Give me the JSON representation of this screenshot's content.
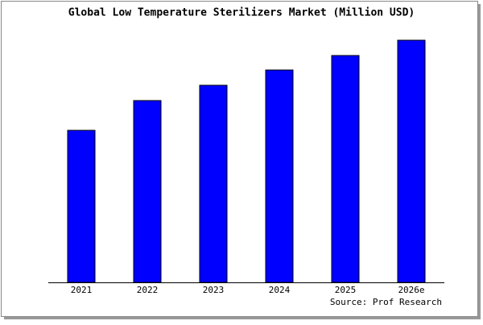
{
  "chart_data": {
    "type": "bar",
    "title": "Global Low Temperature Sterilizers Market (Million USD)",
    "categories": [
      "2021",
      "2022",
      "2023",
      "2024",
      "2025",
      "2026e"
    ],
    "values": [
      189,
      226,
      245,
      264,
      282,
      301
    ],
    "color": "#0000ff",
    "source": "Source: Prof Research"
  }
}
